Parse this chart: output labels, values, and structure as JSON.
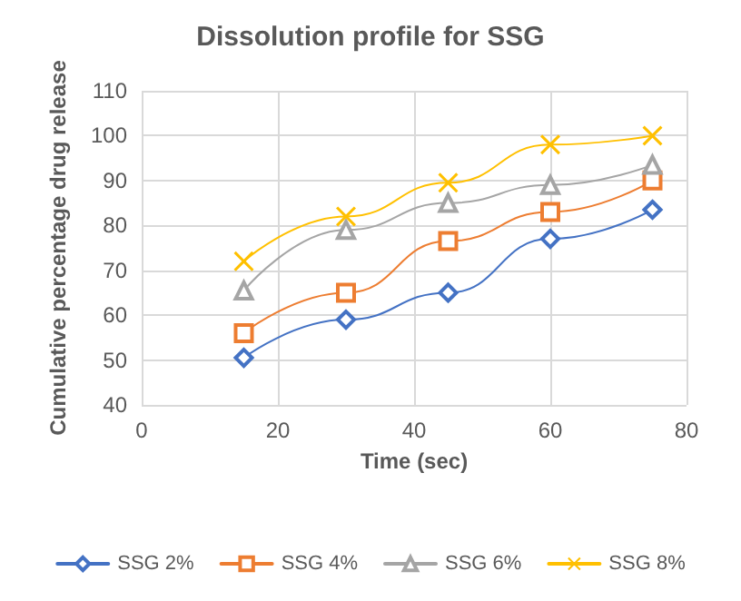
{
  "chart_data": {
    "type": "line",
    "title": "Dissolution profile for SSG",
    "xlabel": "Time (sec)",
    "ylabel": "Cumulative percentage drug release",
    "x": [
      15,
      30,
      45,
      60,
      75
    ],
    "series": [
      {
        "name": "SSG 2%",
        "color": "#4472c4",
        "marker": "diamond",
        "values": [
          50.5,
          59,
          65,
          77,
          83.5
        ]
      },
      {
        "name": "SSG 4%",
        "color": "#ed7d31",
        "marker": "square",
        "values": [
          56,
          65,
          76.5,
          83,
          90
        ]
      },
      {
        "name": "SSG 6%",
        "color": "#a5a5a5",
        "marker": "triangle",
        "values": [
          65.5,
          79,
          85,
          89,
          93.5
        ]
      },
      {
        "name": "SSG 8%",
        "color": "#ffc000",
        "marker": "cross",
        "values": [
          72,
          82,
          89.5,
          98,
          100
        ]
      }
    ],
    "xlim": [
      0,
      80
    ],
    "xticks": [
      0,
      20,
      40,
      60,
      80
    ],
    "ylim": [
      40,
      110
    ],
    "yticks": [
      40,
      50,
      60,
      70,
      80,
      90,
      100,
      110
    ],
    "grid": true,
    "legend": "bottom"
  }
}
